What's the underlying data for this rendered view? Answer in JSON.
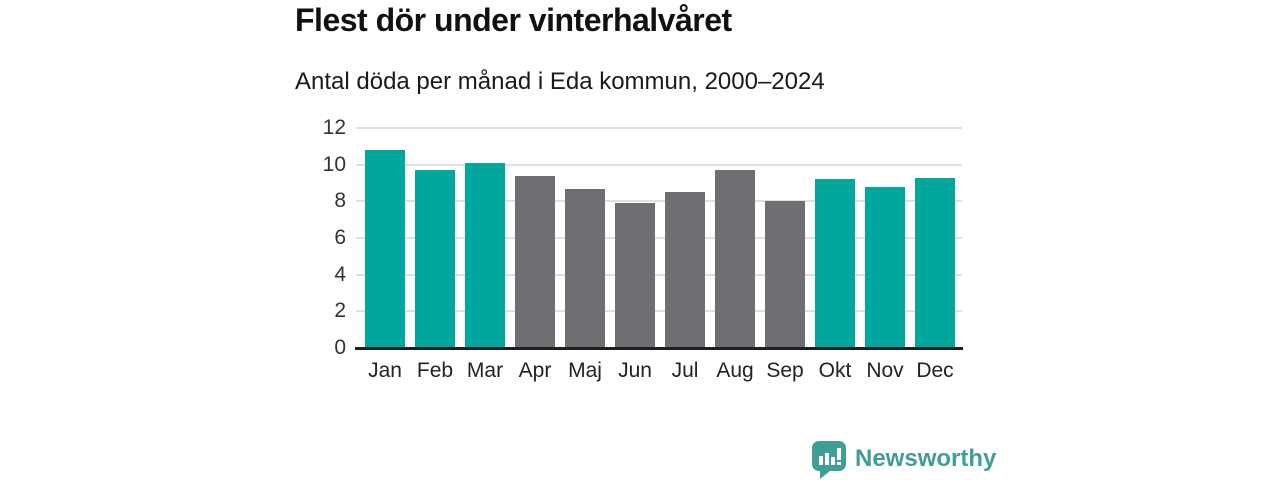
{
  "header": {
    "title": "Flest dör under vinterhalvåret",
    "subtitle": "Antal döda per månad i Eda kommun, 2000–2024"
  },
  "chart_data": {
    "type": "bar",
    "title": "Flest dör under vinterhalvåret",
    "subtitle": "Antal döda per månad i Eda kommun, 2000–2024",
    "categories": [
      "Jan",
      "Feb",
      "Mar",
      "Apr",
      "Maj",
      "Jun",
      "Jul",
      "Aug",
      "Sep",
      "Okt",
      "Nov",
      "Dec"
    ],
    "values": [
      10.8,
      9.7,
      10.1,
      9.4,
      8.7,
      7.9,
      8.5,
      9.7,
      8.0,
      9.2,
      8.8,
      9.3
    ],
    "bar_colors": [
      "winter",
      "winter",
      "winter",
      "summer",
      "summer",
      "summer",
      "summer",
      "summer",
      "summer",
      "winter",
      "winter",
      "winter"
    ],
    "palette": {
      "winter": "#00a79c",
      "summer": "#6f6e72"
    },
    "xlabel": "",
    "ylabel": "",
    "ylim": [
      0,
      12
    ],
    "yticks": [
      0,
      2,
      4,
      6,
      8,
      10,
      12
    ],
    "grid": true,
    "legend": false,
    "style": {
      "grid_color": "#e0e0e0",
      "axis_color": "#1f1f1f",
      "tick_label_color": "#333333"
    }
  },
  "footer": {
    "brand": "Newsworthy",
    "brand_color": "#3f9e98",
    "logo_icon": "speech-bubble-bar-chart-icon"
  }
}
